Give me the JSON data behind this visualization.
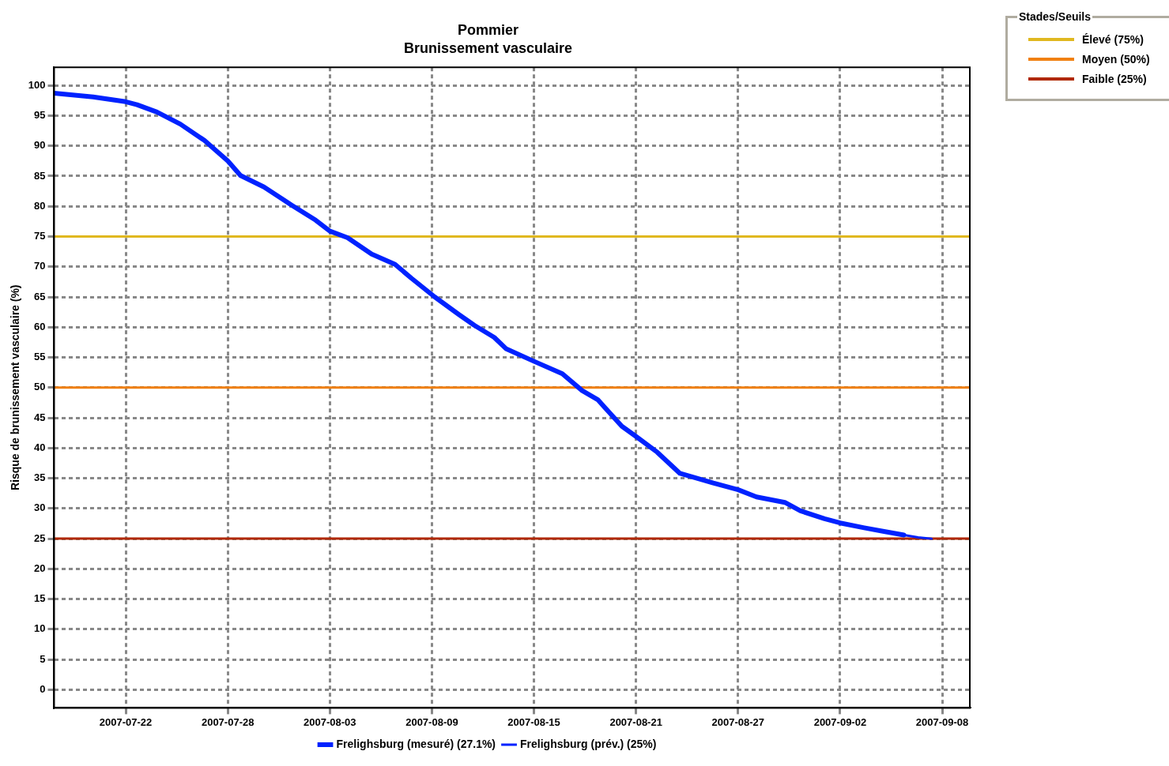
{
  "chart_data": {
    "type": "line",
    "title": "Pommier",
    "subtitle": "Brunissement vasculaire",
    "ylabel": "Risque de brunissement vasculaire (%)",
    "legend_title": "Stades/Seuils",
    "xlim": [
      "2007-07-17T19:00",
      "2007-09-09T15:00"
    ],
    "xticks": [
      "2007-07-22",
      "2007-07-28",
      "2007-08-03",
      "2007-08-09",
      "2007-08-15",
      "2007-08-21",
      "2007-08-27",
      "2007-09-02",
      "2007-09-08"
    ],
    "ylim": [
      -3,
      103
    ],
    "yticks": [
      0,
      5,
      10,
      15,
      20,
      25,
      30,
      35,
      40,
      45,
      50,
      55,
      60,
      65,
      70,
      75,
      80,
      85,
      90,
      95,
      100
    ],
    "grid": true,
    "legend": "bottom",
    "marker": "none",
    "line_style": "solid",
    "series": [
      {
        "name": "Frelighsburg (mesuré) (27.1%)",
        "color": "#0022ff",
        "x": [
          "2007-07-17T19:00",
          "2007-07-20T02:00",
          "2007-07-22T00:00",
          "2007-07-22T16:00",
          "2007-07-23T20:00",
          "2007-07-25T05:00",
          "2007-07-26T15:00",
          "2007-07-28T00:00",
          "2007-07-28T18:00",
          "2007-07-30T03:00",
          "2007-07-31T18:00",
          "2007-08-02T04:00",
          "2007-08-03T00:00",
          "2007-08-04T01:00",
          "2007-08-05T11:00",
          "2007-08-06T20:00",
          "2007-08-07T19:00",
          "2007-08-09T04:00",
          "2007-08-10T14:00",
          "2007-08-11T12:00",
          "2007-08-12T16:00",
          "2007-08-13T09:00",
          "2007-08-14T23:00",
          "2007-08-16T16:00",
          "2007-08-17T20:00",
          "2007-08-18T18:00",
          "2007-08-20T04:00",
          "2007-08-20T23:00",
          "2007-08-22T06:00",
          "2007-08-23T14:00",
          "2007-08-24T14:00",
          "2007-08-25T13:00",
          "2007-08-27T00:00",
          "2007-08-28T02:00",
          "2007-08-29T18:00",
          "2007-08-30T16:00",
          "2007-09-01T02:00",
          "2007-09-02T00:00",
          "2007-09-03T10:00",
          "2007-09-04T14:00",
          "2007-09-05T18:00"
        ],
        "values": [
          98.7,
          98.1,
          97.3,
          96.8,
          95.6,
          93.6,
          90.9,
          87.5,
          85.1,
          83.2,
          80.2,
          77.7,
          75.9,
          74.8,
          72.1,
          70.4,
          68.1,
          65,
          62.1,
          60.3,
          58.3,
          56.4,
          54.4,
          52.3,
          49.5,
          48,
          43.6,
          42,
          39.3,
          35.8,
          35,
          34.2,
          33.1,
          31.9,
          31,
          29.6,
          28.3,
          27.6,
          26.8,
          26.2,
          25.6
        ]
      },
      {
        "name": "Frelighsburg (prév.) (25%)",
        "color": "#0022ff",
        "x": [
          "2007-09-05T18:00",
          "2007-09-06T14:00",
          "2007-09-07T09:00"
        ],
        "values": [
          25.6,
          25.2,
          25
        ]
      }
    ],
    "ref_lines": [
      {
        "axis": "y",
        "value": 75,
        "label": "Élevé (75%)",
        "color": "#e0b820"
      },
      {
        "axis": "y",
        "value": 50,
        "label": "Moyen (50%)",
        "color": "#f08010"
      },
      {
        "axis": "y",
        "value": 25,
        "label": "Faible (25%)",
        "color": "#b02800"
      }
    ]
  }
}
